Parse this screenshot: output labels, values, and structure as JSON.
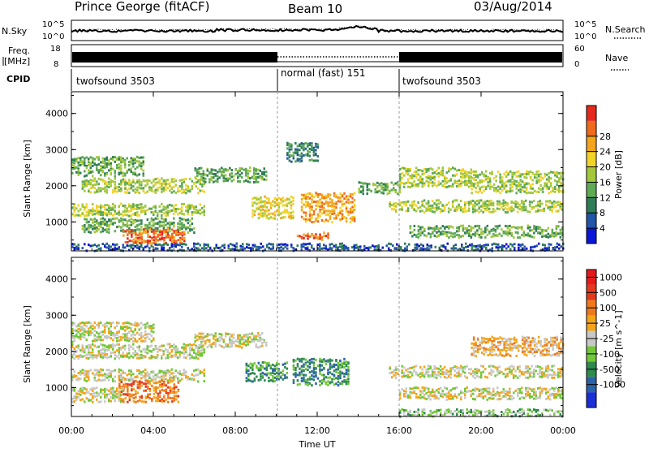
{
  "header": {
    "station": "Prince George (fitACF)",
    "beam": "Beam 10",
    "date": "03/Aug/2014"
  },
  "strip_nsky": {
    "left_label": "N.Sky",
    "right_label": "N.Search",
    "left_ticks": [
      "10^5",
      "10^0"
    ],
    "right_ticks": [
      "10^5",
      "10^0"
    ]
  },
  "strip_freq": {
    "left_label_line1": "Freq.",
    "left_label_line2": "[MHz]",
    "right_label": "Nave",
    "left_ticks": [
      "18",
      "8"
    ],
    "right_ticks": [
      "60",
      "0"
    ]
  },
  "strip_cpid": {
    "label": "CPID",
    "segments": [
      {
        "name": "twofsound 3503",
        "start_h": 0,
        "end_h": 10
      },
      {
        "name": "normal (fast) 151",
        "start_h": 10,
        "end_h": 16
      },
      {
        "name": "twofsound 3503",
        "start_h": 16,
        "end_h": 24
      }
    ]
  },
  "chart_data": [
    {
      "type": "heatmap",
      "title": "",
      "ylabel": "Slant Range [km]",
      "xlabel": "",
      "x_range_hours": [
        0,
        24
      ],
      "ylim": [
        200,
        4600
      ],
      "y_ticks": [
        1000,
        2000,
        3000,
        4000
      ],
      "colorbar": {
        "label": "Power [dB]",
        "ticks": [
          "4",
          "8",
          "12",
          "16",
          "20",
          "24",
          "28"
        ],
        "colors": [
          "#0b17d6",
          "#2456a8",
          "#2f7d56",
          "#5faa55",
          "#a4c83a",
          "#f2d327",
          "#f3a51c",
          "#ef6a1d",
          "#e42a1c"
        ]
      },
      "bands": [
        {
          "t0": 0.0,
          "t1": 3.5,
          "r0": 2300,
          "r1": 2800,
          "level": 3
        },
        {
          "t0": 0.5,
          "t1": 6.5,
          "r0": 1800,
          "r1": 2200,
          "level": 4
        },
        {
          "t0": 0.0,
          "t1": 6.5,
          "r0": 1200,
          "r1": 1500,
          "level": 4
        },
        {
          "t0": 0.5,
          "t1": 6.0,
          "r0": 700,
          "r1": 1100,
          "level": 3
        },
        {
          "t0": 2.5,
          "t1": 5.5,
          "r0": 450,
          "r1": 800,
          "level": 7
        },
        {
          "t0": 6.0,
          "t1": 9.5,
          "r0": 2100,
          "r1": 2500,
          "level": 3
        },
        {
          "t0": 8.8,
          "t1": 10.8,
          "r0": 1100,
          "r1": 1700,
          "level": 5
        },
        {
          "t0": 11.2,
          "t1": 13.8,
          "r0": 1000,
          "r1": 1800,
          "level": 6
        },
        {
          "t0": 10.5,
          "t1": 12.0,
          "r0": 2700,
          "r1": 3200,
          "level": 2
        },
        {
          "t0": 11.0,
          "t1": 12.5,
          "r0": 500,
          "r1": 700,
          "level": 7
        },
        {
          "t0": 14.0,
          "t1": 16.0,
          "r0": 1800,
          "r1": 2100,
          "level": 3
        },
        {
          "t0": 16.0,
          "t1": 19.5,
          "r0": 2000,
          "r1": 2500,
          "level": 4
        },
        {
          "t0": 15.5,
          "t1": 24.0,
          "r0": 1300,
          "r1": 1600,
          "level": 4
        },
        {
          "t0": 19.5,
          "t1": 24.0,
          "r0": 1800,
          "r1": 2400,
          "level": 4
        },
        {
          "t0": 16.5,
          "t1": 24.0,
          "r0": 600,
          "r1": 900,
          "level": 3
        },
        {
          "t0": 0.0,
          "t1": 24.0,
          "r0": 200,
          "r1": 400,
          "level": 1
        }
      ]
    },
    {
      "type": "heatmap",
      "title": "",
      "ylabel": "Slant Range [km]",
      "xlabel": "Time UT",
      "x_range_hours": [
        0,
        24
      ],
      "ylim": [
        200,
        4600
      ],
      "y_ticks": [
        1000,
        2000,
        3000,
        4000
      ],
      "x_ticks": [
        "00:00",
        "04:00",
        "08:00",
        "12:00",
        "16:00",
        "20:00",
        "00:00"
      ],
      "colorbar": {
        "label": "Velocity [m s^-1]",
        "ticks": [
          "1000",
          "500",
          "100",
          "25",
          "-25",
          "-100",
          "-500",
          "-1000"
        ],
        "colors": [
          "#1b2fd6",
          "#2b62a8",
          "#2f8a4e",
          "#72c838",
          "#c8c8c8",
          "#f3a51c",
          "#ef7a1d",
          "#e43a1c",
          "#e41a1c"
        ]
      },
      "bands": [
        {
          "t0": 0.0,
          "t1": 4.0,
          "r0": 2300,
          "r1": 2800,
          "level": 4
        },
        {
          "t0": 0.0,
          "t1": 6.5,
          "r0": 1800,
          "r1": 2200,
          "level": 4
        },
        {
          "t0": 0.0,
          "t1": 6.5,
          "r0": 1200,
          "r1": 1500,
          "level": 4
        },
        {
          "t0": 2.3,
          "t1": 5.2,
          "r0": 600,
          "r1": 1200,
          "level": 6
        },
        {
          "t0": 0.0,
          "t1": 2.5,
          "r0": 600,
          "r1": 1000,
          "level": 4
        },
        {
          "t0": 8.5,
          "t1": 10.5,
          "r0": 1200,
          "r1": 1700,
          "level": 2
        },
        {
          "t0": 10.8,
          "t1": 13.5,
          "r0": 1100,
          "r1": 1800,
          "level": 2
        },
        {
          "t0": 6.0,
          "t1": 9.5,
          "r0": 2100,
          "r1": 2500,
          "level": 4
        },
        {
          "t0": 15.5,
          "t1": 24.0,
          "r0": 1300,
          "r1": 1600,
          "level": 4
        },
        {
          "t0": 19.5,
          "t1": 24.0,
          "r0": 1900,
          "r1": 2400,
          "level": 5
        },
        {
          "t0": 16.0,
          "t1": 24.0,
          "r0": 700,
          "r1": 1000,
          "level": 4
        },
        {
          "t0": 16.0,
          "t1": 24.0,
          "r0": 200,
          "r1": 400,
          "level": 3
        }
      ]
    }
  ]
}
